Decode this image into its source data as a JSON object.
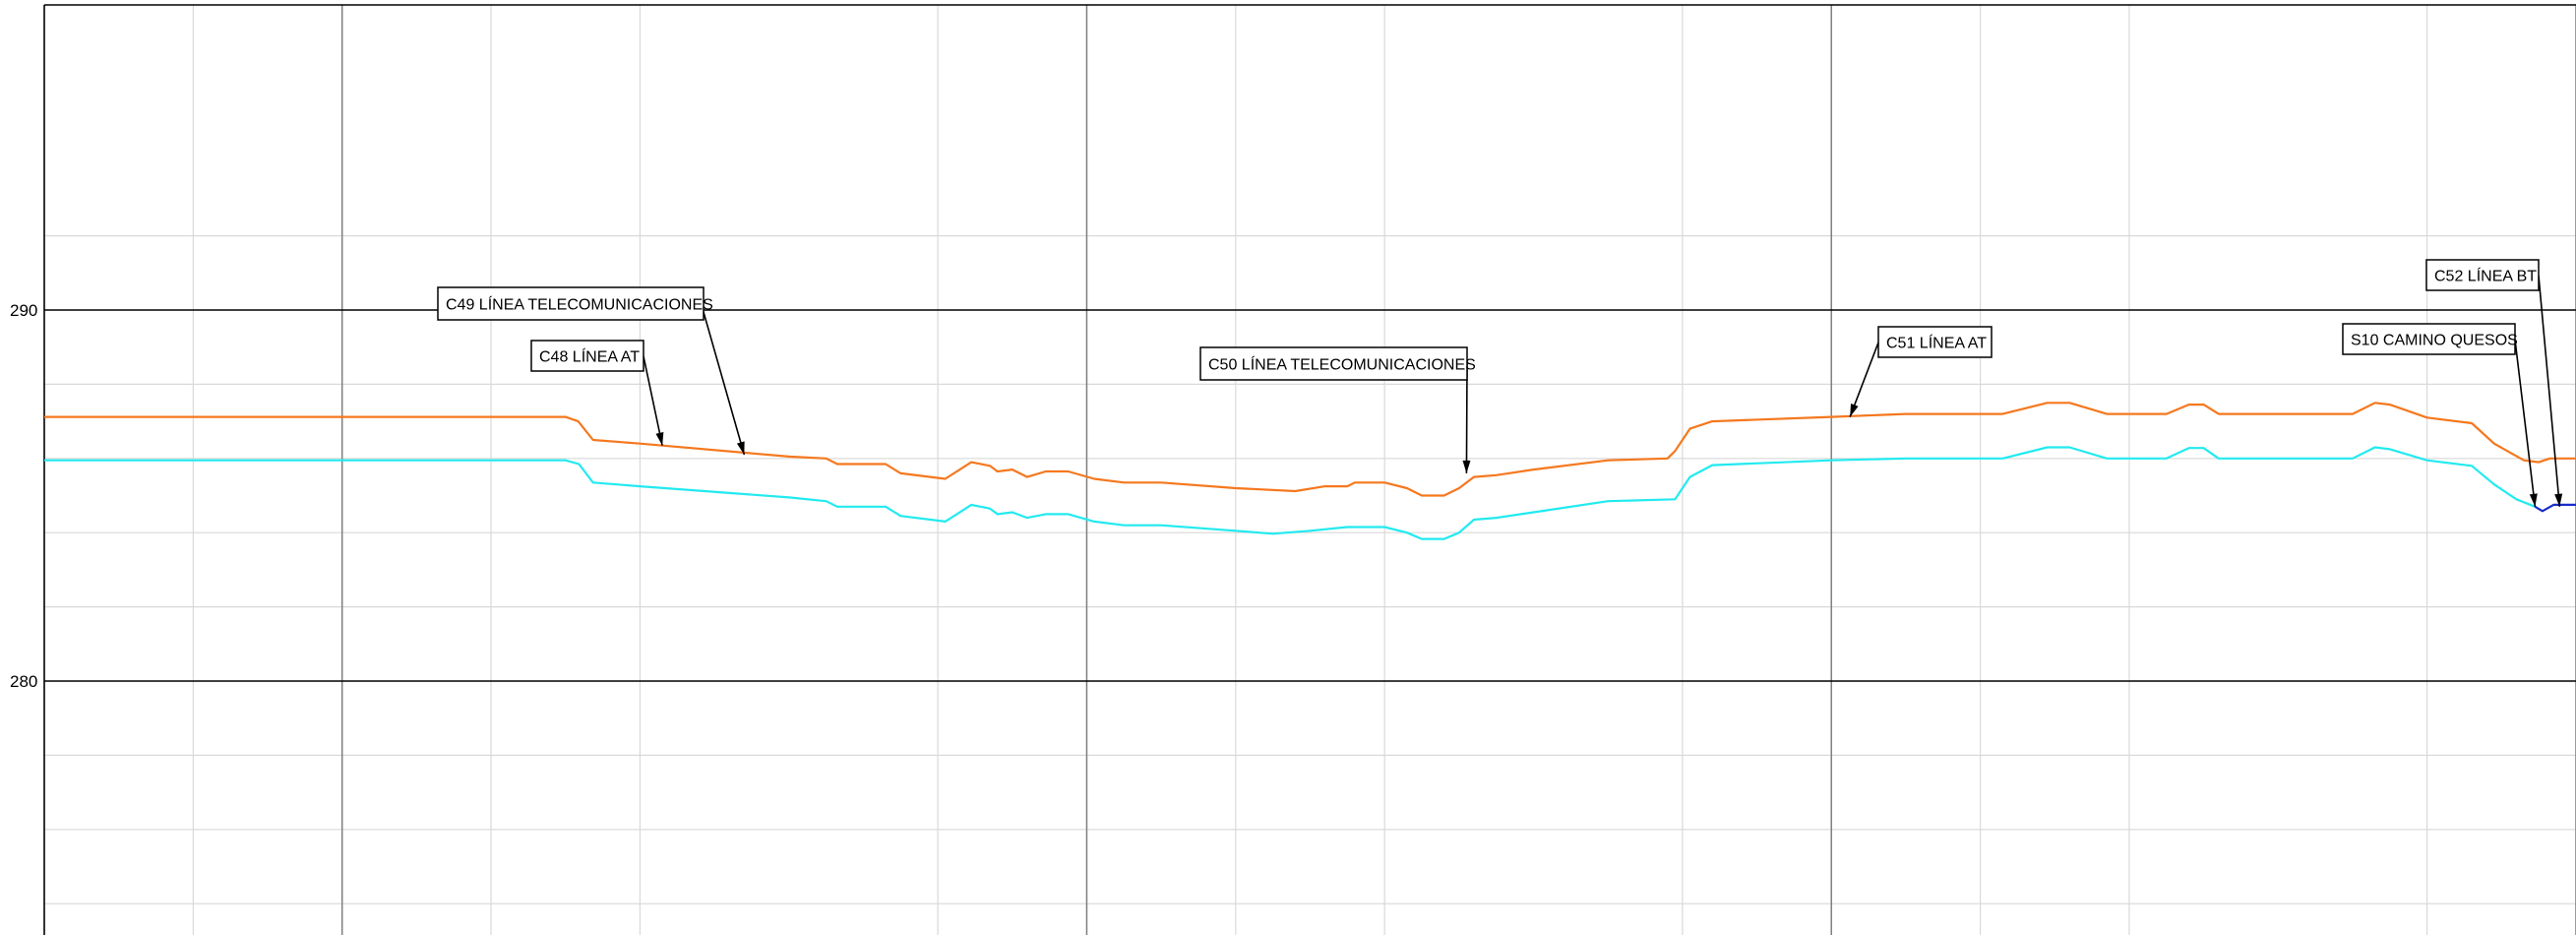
{
  "chart_data": {
    "type": "line",
    "title": "",
    "xlabel": "",
    "ylabel": "",
    "ylim": [
      270,
      292
    ],
    "xlim": [
      0,
      3400
    ],
    "grid": true,
    "y_ticks": [
      {
        "value": 290,
        "label": "290"
      },
      {
        "value": 280,
        "label": "280"
      }
    ],
    "colors": {
      "terrain": "#f5781e",
      "pipe": "#22eaf0",
      "pipe_end": "#1a2ccc",
      "major_grid": "#000000",
      "mid_grid": "#7f7f7f",
      "minor_grid": "#d9d9d9"
    },
    "series": [
      {
        "id": "terrain",
        "color": "#f5781e",
        "points": [
          [
            0,
            287.12
          ],
          [
            700,
            287.12
          ],
          [
            717,
            287.0
          ],
          [
            737,
            286.5
          ],
          [
            800,
            286.4
          ],
          [
            1000,
            286.05
          ],
          [
            1050,
            286.0
          ],
          [
            1065,
            285.85
          ],
          [
            1130,
            285.85
          ],
          [
            1150,
            285.6
          ],
          [
            1210,
            285.45
          ],
          [
            1245,
            285.9
          ],
          [
            1270,
            285.8
          ],
          [
            1280,
            285.65
          ],
          [
            1300,
            285.7
          ],
          [
            1320,
            285.5
          ],
          [
            1345,
            285.65
          ],
          [
            1375,
            285.65
          ],
          [
            1410,
            285.45
          ],
          [
            1450,
            285.35
          ],
          [
            1500,
            285.35
          ],
          [
            1600,
            285.2
          ],
          [
            1680,
            285.12
          ],
          [
            1720,
            285.25
          ],
          [
            1750,
            285.25
          ],
          [
            1760,
            285.35
          ],
          [
            1800,
            285.35
          ],
          [
            1830,
            285.2
          ],
          [
            1850,
            285.0
          ],
          [
            1880,
            285.0
          ],
          [
            1900,
            285.2
          ],
          [
            1920,
            285.5
          ],
          [
            1950,
            285.55
          ],
          [
            2000,
            285.7
          ],
          [
            2100,
            285.95
          ],
          [
            2180,
            286.0
          ],
          [
            2190,
            286.2
          ],
          [
            2210,
            286.8
          ],
          [
            2240,
            287.0
          ],
          [
            2400,
            287.12
          ],
          [
            2500,
            287.2
          ],
          [
            2630,
            287.2
          ],
          [
            2690,
            287.5
          ],
          [
            2720,
            287.5
          ],
          [
            2770,
            287.2
          ],
          [
            2850,
            287.2
          ],
          [
            2880,
            287.45
          ],
          [
            2900,
            287.45
          ],
          [
            2920,
            287.2
          ],
          [
            3100,
            287.2
          ],
          [
            3130,
            287.5
          ],
          [
            3150,
            287.45
          ],
          [
            3200,
            287.1
          ],
          [
            3260,
            286.95
          ],
          [
            3290,
            286.4
          ],
          [
            3330,
            285.95
          ],
          [
            3350,
            285.9
          ],
          [
            3365,
            286.0
          ],
          [
            3400,
            286.0
          ]
        ]
      },
      {
        "id": "pipe",
        "color": "#22eaf0",
        "points": [
          [
            0,
            285.95
          ],
          [
            700,
            285.95
          ],
          [
            718,
            285.85
          ],
          [
            737,
            285.35
          ],
          [
            800,
            285.25
          ],
          [
            1000,
            284.95
          ],
          [
            1050,
            284.85
          ],
          [
            1065,
            284.7
          ],
          [
            1130,
            284.7
          ],
          [
            1150,
            284.45
          ],
          [
            1210,
            284.3
          ],
          [
            1245,
            284.75
          ],
          [
            1270,
            284.65
          ],
          [
            1280,
            284.5
          ],
          [
            1300,
            284.55
          ],
          [
            1320,
            284.4
          ],
          [
            1345,
            284.5
          ],
          [
            1375,
            284.5
          ],
          [
            1410,
            284.3
          ],
          [
            1450,
            284.2
          ],
          [
            1500,
            284.2
          ],
          [
            1600,
            284.05
          ],
          [
            1650,
            283.97
          ],
          [
            1700,
            284.05
          ],
          [
            1750,
            284.15
          ],
          [
            1800,
            284.15
          ],
          [
            1830,
            284.0
          ],
          [
            1850,
            283.83
          ],
          [
            1880,
            283.83
          ],
          [
            1900,
            284.0
          ],
          [
            1920,
            284.35
          ],
          [
            1950,
            284.4
          ],
          [
            2000,
            284.55
          ],
          [
            2100,
            284.85
          ],
          [
            2190,
            284.9
          ],
          [
            2210,
            285.5
          ],
          [
            2240,
            285.82
          ],
          [
            2400,
            285.95
          ],
          [
            2500,
            286.0
          ],
          [
            2630,
            286.0
          ],
          [
            2690,
            286.3
          ],
          [
            2720,
            286.3
          ],
          [
            2770,
            286.0
          ],
          [
            2850,
            286.0
          ],
          [
            2880,
            286.28
          ],
          [
            2900,
            286.28
          ],
          [
            2920,
            286.0
          ],
          [
            3100,
            286.0
          ],
          [
            3130,
            286.3
          ],
          [
            3150,
            286.25
          ],
          [
            3200,
            285.95
          ],
          [
            3260,
            285.8
          ],
          [
            3290,
            285.3
          ],
          [
            3320,
            284.9
          ],
          [
            3345,
            284.7
          ]
        ]
      },
      {
        "id": "pipe-end",
        "color": "#1a2ccc",
        "points": [
          [
            3345,
            284.7
          ],
          [
            3355,
            284.58
          ],
          [
            3370,
            284.75
          ],
          [
            3400,
            284.75
          ]
        ]
      }
    ],
    "annotations": [
      {
        "label": "C49 LÍNEA TELECOMUNICACIONES",
        "x": 940,
        "y": 286.1
      },
      {
        "label": "C48 LÍNEA AT",
        "x": 830,
        "y": 286.35
      },
      {
        "label": "C50  LÍNEA TELECOMUNICACIONES",
        "x": 1910,
        "y": 285.6
      },
      {
        "label": "C51 LÍNEA AT",
        "x": 2425,
        "y": 287.12
      },
      {
        "label": "S10 CAMINO QUESOS",
        "x": 3345,
        "y": 284.7
      },
      {
        "label": "C52 LÍNEA BT",
        "x": 3378,
        "y": 284.7
      }
    ]
  }
}
